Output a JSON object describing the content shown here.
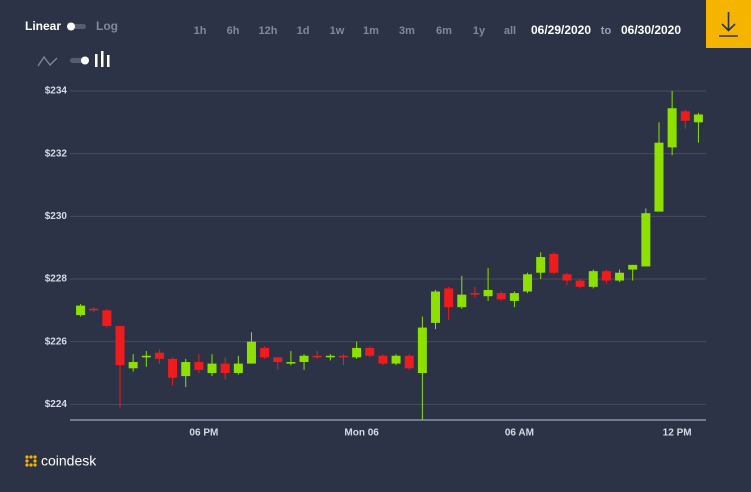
{
  "header": {
    "scale_linear": "Linear",
    "scale_log": "Log",
    "ranges": [
      "1h",
      "6h",
      "12h",
      "1d",
      "1w",
      "1m",
      "3m",
      "6m",
      "1y",
      "all"
    ],
    "active_range": "1d",
    "date_from": "06/29/2020",
    "date_sep": "to",
    "date_to": "06/30/2020"
  },
  "footer": {
    "brand": "coindesk"
  },
  "chart_data": {
    "type": "candlestick",
    "categories": [
      null,
      null,
      null,
      null,
      null,
      null,
      null,
      null,
      null,
      "06 PM",
      null,
      null,
      null,
      null,
      null,
      null,
      null,
      null,
      null,
      null,
      null,
      "Mon 06",
      null,
      null,
      null,
      null,
      null,
      null,
      null,
      null,
      null,
      null,
      null,
      "06 AM",
      null,
      null,
      null,
      null,
      null,
      null,
      null,
      null,
      null,
      null,
      null,
      "12 PM",
      null,
      null
    ],
    "open": [
      226.85,
      227.05,
      227.0,
      226.5,
      225.15,
      225.5,
      225.65,
      225.45,
      224.9,
      225.35,
      225.0,
      225.3,
      225.0,
      225.3,
      225.8,
      225.5,
      225.3,
      225.35,
      225.55,
      225.5,
      225.55,
      225.5,
      225.8,
      225.55,
      225.3,
      225.55,
      225.0,
      226.6,
      227.7,
      227.1,
      227.55,
      227.45,
      227.55,
      227.3,
      227.6,
      228.2,
      228.8,
      228.15,
      227.95,
      227.75,
      228.25,
      227.95,
      228.3,
      228.4,
      230.15,
      232.2,
      233.35,
      233.0
    ],
    "high": [
      227.2,
      227.1,
      227.05,
      226.5,
      225.6,
      225.7,
      225.75,
      225.5,
      225.45,
      225.6,
      225.6,
      225.5,
      225.55,
      226.3,
      225.85,
      225.5,
      225.7,
      225.6,
      225.7,
      225.6,
      225.6,
      226.0,
      225.85,
      225.6,
      225.6,
      225.6,
      226.8,
      227.65,
      227.75,
      228.1,
      227.75,
      228.35,
      227.6,
      227.6,
      228.2,
      228.85,
      228.85,
      228.2,
      228.0,
      228.3,
      228.3,
      228.3,
      228.45,
      230.25,
      233.0,
      234.0,
      233.4,
      233.3
    ],
    "low": [
      226.8,
      226.95,
      226.45,
      223.9,
      225.05,
      225.2,
      225.3,
      224.6,
      224.55,
      225.0,
      224.9,
      224.8,
      224.95,
      225.3,
      225.45,
      225.1,
      225.25,
      225.1,
      225.45,
      225.4,
      225.25,
      225.45,
      225.5,
      225.25,
      225.25,
      225.1,
      223.5,
      226.4,
      226.7,
      227.05,
      227.4,
      227.3,
      227.3,
      227.1,
      227.55,
      228.0,
      228.15,
      227.8,
      227.7,
      227.7,
      227.85,
      227.9,
      227.95,
      228.4,
      230.15,
      231.95,
      232.8,
      232.35
    ],
    "close": [
      227.15,
      227.0,
      226.5,
      225.25,
      225.35,
      225.55,
      225.45,
      224.85,
      225.35,
      225.1,
      225.3,
      225.0,
      225.3,
      226.0,
      225.5,
      225.35,
      225.35,
      225.55,
      225.5,
      225.55,
      225.5,
      225.8,
      225.55,
      225.3,
      225.55,
      225.15,
      226.45,
      227.6,
      227.1,
      227.5,
      227.5,
      227.65,
      227.35,
      227.55,
      228.15,
      228.7,
      228.2,
      227.95,
      227.75,
      228.25,
      227.95,
      228.2,
      228.45,
      230.1,
      232.35,
      233.45,
      233.05,
      233.25
    ],
    "up_color": "#8ee000",
    "down_color": "#ee1c1c",
    "ylim": [
      223.5,
      234.35
    ],
    "yticks": [
      {
        "value": 224,
        "label": "$224"
      },
      {
        "value": 226,
        "label": "$226"
      },
      {
        "value": 228,
        "label": "$228"
      },
      {
        "value": 230,
        "label": "$230"
      },
      {
        "value": 232,
        "label": "$232"
      },
      {
        "value": 234,
        "label": "$234"
      }
    ],
    "grid": true
  }
}
